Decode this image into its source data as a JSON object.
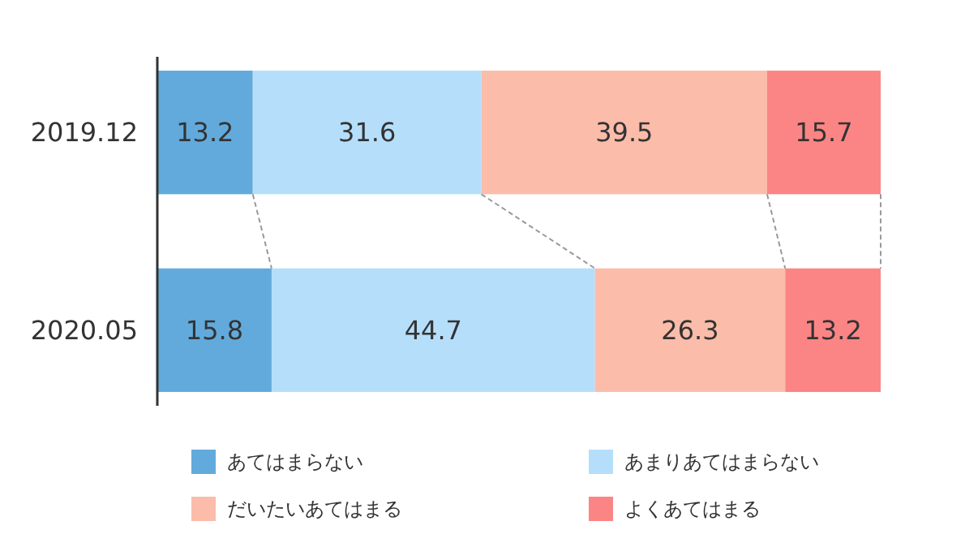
{
  "chart_data": {
    "type": "bar",
    "orientation": "horizontal",
    "stacked": true,
    "data_labels": true,
    "legend": "bottom",
    "categories": [
      "2019.12",
      "2020.05"
    ],
    "series": [
      {
        "name": "あてはまらない",
        "color": "#62aadc",
        "values": [
          13.2,
          15.8
        ]
      },
      {
        "name": "あまりあてはまらない",
        "color": "#b5defb",
        "values": [
          31.6,
          44.7
        ]
      },
      {
        "name": "だいたいあてはまる",
        "color": "#fbbcaa",
        "values": [
          39.5,
          26.3
        ]
      },
      {
        "name": "よくあてはまる",
        "color": "#fb8584",
        "values": [
          15.7,
          13.2
        ]
      }
    ]
  }
}
